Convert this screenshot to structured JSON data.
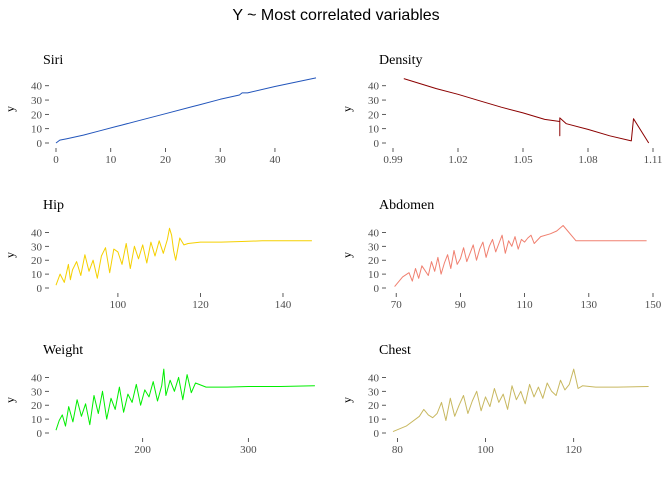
{
  "figure": {
    "title": "Y ~ Most correlated variables"
  },
  "chart_data": [
    {
      "type": "line",
      "title": "Siri",
      "xlabel": "",
      "ylabel": "y",
      "color": "#2255bb",
      "xlim": [
        0,
        47.5
      ],
      "ylim": [
        0,
        47.5
      ],
      "xticks": [
        0,
        10,
        20,
        30,
        40
      ],
      "yticks": [
        0,
        10,
        20,
        30,
        40
      ],
      "x": [
        0,
        0.7,
        2,
        5,
        8,
        11,
        12,
        15,
        20,
        25,
        26,
        30,
        33.5,
        34,
        35,
        40,
        45,
        47.5
      ],
      "y": [
        0,
        2,
        3,
        5.5,
        8.5,
        11.5,
        12.5,
        15.5,
        20.5,
        25.5,
        26.5,
        30.5,
        33.5,
        35,
        35,
        39.5,
        43.5,
        45.5
      ]
    },
    {
      "type": "line",
      "title": "Density",
      "xlabel": "",
      "ylabel": "y",
      "color": "#8b0000",
      "xlim": [
        0.99,
        1.11
      ],
      "ylim": [
        0,
        47.5
      ],
      "xticks": [
        0.99,
        1.02,
        1.05,
        1.08,
        1.11
      ],
      "yticks": [
        0,
        10,
        20,
        30,
        40
      ],
      "x": [
        0.995,
        1.01,
        1.02,
        1.03,
        1.04,
        1.05,
        1.06,
        1.067,
        1.067,
        1.067,
        1.07,
        1.08,
        1.09,
        1.1,
        1.101,
        1.108
      ],
      "y": [
        45,
        38,
        34,
        29.5,
        25,
        21,
        16.5,
        15,
        5,
        17.5,
        13.5,
        9.5,
        5,
        1.5,
        17,
        0
      ]
    },
    {
      "type": "line",
      "title": "Hip",
      "xlabel": "",
      "ylabel": "y",
      "color": "#f5d000",
      "xlim": [
        85,
        148
      ],
      "ylim": [
        0,
        47.5
      ],
      "xticks": [
        100,
        120,
        140
      ],
      "yticks": [
        0,
        10,
        20,
        30,
        40
      ],
      "x": [
        85,
        86,
        87,
        88,
        88.5,
        89,
        90,
        91,
        92,
        93,
        94,
        95,
        96,
        97,
        98,
        99,
        100,
        101,
        102,
        103,
        104,
        105,
        106,
        107,
        108,
        109,
        110,
        111,
        112,
        112.5,
        113,
        113.5,
        114,
        115,
        116,
        117,
        120,
        125,
        130,
        135,
        140,
        147
      ],
      "y": [
        2,
        10,
        4,
        17,
        6,
        13,
        19,
        9,
        24,
        12,
        20,
        7,
        23,
        29,
        11,
        28,
        26,
        17,
        32,
        14,
        30,
        21,
        31,
        18,
        33,
        23,
        34,
        25,
        35,
        43,
        38,
        27,
        20,
        36,
        31,
        32,
        33,
        33,
        33.5,
        34,
        34,
        34
      ]
    },
    {
      "type": "line",
      "title": "Abdomen",
      "xlabel": "",
      "ylabel": "y",
      "color": "#f08070",
      "xlim": [
        69,
        150
      ],
      "ylim": [
        0,
        47.5
      ],
      "xticks": [
        70,
        90,
        110,
        130,
        150
      ],
      "yticks": [
        0,
        10,
        20,
        30,
        40
      ],
      "x": [
        69.5,
        72,
        74,
        75,
        76,
        77,
        78,
        80,
        81,
        82,
        83,
        84,
        85,
        86,
        87,
        88,
        89,
        90,
        91,
        92,
        93,
        94,
        95,
        96,
        97,
        98,
        99,
        100,
        101,
        102,
        103,
        104,
        105,
        106,
        107,
        108,
        109,
        110,
        111,
        112,
        113,
        115,
        118,
        120,
        122,
        126,
        130,
        135,
        140,
        148
      ],
      "y": [
        1,
        8,
        11,
        5,
        14,
        7,
        16,
        9,
        19,
        12,
        22,
        10,
        18,
        24,
        14,
        27,
        17,
        21,
        29,
        19,
        25,
        31,
        20,
        28,
        33,
        22,
        30,
        35,
        26,
        32,
        38,
        25,
        34,
        30,
        37,
        28,
        35,
        33,
        36,
        38,
        32,
        37,
        39,
        41,
        45,
        34,
        34,
        34,
        34,
        34
      ]
    },
    {
      "type": "line",
      "title": "Weight",
      "xlabel": "",
      "ylabel": "y",
      "color": "#00ee00",
      "xlim": [
        118,
        364
      ],
      "ylim": [
        0,
        47.5
      ],
      "xticks": [
        200,
        300
      ],
      "yticks": [
        0,
        10,
        20,
        30,
        40
      ],
      "x": [
        118,
        121,
        124,
        127,
        130,
        134,
        138,
        142,
        146,
        150,
        154,
        158,
        162,
        166,
        170,
        174,
        178,
        182,
        186,
        190,
        194,
        198,
        202,
        206,
        210,
        214,
        218,
        220,
        222,
        226,
        230,
        234,
        238,
        242,
        246,
        250,
        260,
        280,
        300,
        330,
        363
      ],
      "y": [
        2,
        9,
        13,
        5,
        19,
        8,
        24,
        12,
        21,
        6,
        27,
        14,
        30,
        10,
        25,
        17,
        33,
        15,
        28,
        22,
        35,
        20,
        31,
        26,
        37,
        23,
        34,
        46,
        27,
        38,
        30,
        40,
        24,
        42,
        29,
        36,
        33,
        33,
        33.5,
        33.5,
        34
      ]
    },
    {
      "type": "line",
      "title": "Chest",
      "xlabel": "",
      "ylabel": "y",
      "color": "#c8b860",
      "xlim": [
        79,
        138
      ],
      "ylim": [
        0,
        47.5
      ],
      "xticks": [
        80,
        100,
        120
      ],
      "yticks": [
        0,
        10,
        20,
        30,
        40
      ],
      "x": [
        79,
        82,
        85,
        86,
        86.5,
        87,
        88,
        89,
        90,
        91,
        92,
        93,
        94,
        95,
        96,
        97,
        98,
        99,
        100,
        101,
        102,
        103,
        104,
        105,
        106,
        107,
        108,
        109,
        110,
        111,
        112,
        113,
        114,
        115,
        116,
        117,
        118,
        119,
        120,
        121,
        122,
        125,
        130,
        137
      ],
      "y": [
        1,
        5,
        12,
        17,
        15,
        13,
        11,
        14,
        22,
        9,
        25,
        12,
        20,
        27,
        14,
        23,
        30,
        16,
        26,
        19,
        32,
        22,
        28,
        17,
        34,
        24,
        30,
        21,
        35,
        26,
        33,
        25,
        36,
        30,
        27,
        38,
        31,
        35,
        46,
        32,
        34,
        33,
        33,
        33.5
      ]
    }
  ]
}
